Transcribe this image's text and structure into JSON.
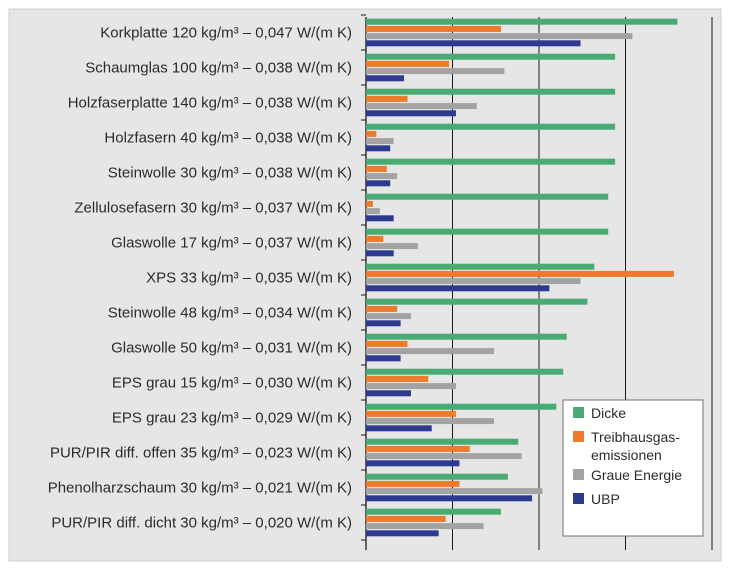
{
  "chart_data": {
    "type": "bar",
    "orientation": "horizontal",
    "grid": true,
    "legend_position": "bottom-right",
    "background_color": "#e6e6e6",
    "categories": [
      "Korkplatte 120 kg/m³ – 0,047 W/(m K)",
      "Schaumglas 100 kg/m³ – 0,038 W/(m K)",
      "Holzfaserplatte 140 kg/m³ – 0,038 W/(m K)",
      "Holzfasern 40 kg/m³ – 0,038 W/(m K)",
      "Steinwolle 30 kg/m³ – 0,038 W/(m K)",
      "Zellulosefasern 30 kg/m³ – 0,037 W/(m K)",
      "Glaswolle 17 kg/m³ – 0,037 W/(m K)",
      "XPS 33 kg/m³ – 0,035 W/(m K)",
      "Steinwolle 48 kg/m³ – 0,034 W/(m K)",
      "Glaswolle 50 kg/m³ – 0,031 W/(m K)",
      "EPS grau 15 kg/m³ – 0,030 W/(m K)",
      "EPS grau 23 kg/m³ – 0,029 W/(m K)",
      "PUR/PIR diff. offen 35 kg/m³ – 0,023 W/(m K)",
      "Phenolharzschaum 30 kg/m³ – 0,021 W/(m K)",
      "PUR/PIR diff. dicht 30 kg/m³ – 0,020 W/(m K)"
    ],
    "xlim": [
      0,
      1
    ],
    "series": [
      {
        "name": "Dicke",
        "color": "#4aaa73",
        "values": [
          0.9,
          0.72,
          0.72,
          0.72,
          0.72,
          0.7,
          0.7,
          0.66,
          0.64,
          0.58,
          0.57,
          0.55,
          0.44,
          0.41,
          0.39
        ]
      },
      {
        "name": "Treibhausgas-\nemissionen",
        "color": "#ee7a2b",
        "values": [
          0.39,
          0.24,
          0.12,
          0.03,
          0.06,
          0.02,
          0.05,
          0.89,
          0.09,
          0.12,
          0.18,
          0.26,
          0.3,
          0.27,
          0.23
        ]
      },
      {
        "name": "Graue Energie",
        "color": "#a3a3a3",
        "values": [
          0.77,
          0.4,
          0.32,
          0.08,
          0.09,
          0.04,
          0.15,
          0.62,
          0.13,
          0.37,
          0.26,
          0.37,
          0.45,
          0.51,
          0.34
        ]
      },
      {
        "name": "UBP",
        "color": "#2c3b8f",
        "values": [
          0.62,
          0.11,
          0.26,
          0.07,
          0.07,
          0.08,
          0.08,
          0.53,
          0.1,
          0.1,
          0.13,
          0.19,
          0.27,
          0.48,
          0.21
        ]
      }
    ]
  }
}
